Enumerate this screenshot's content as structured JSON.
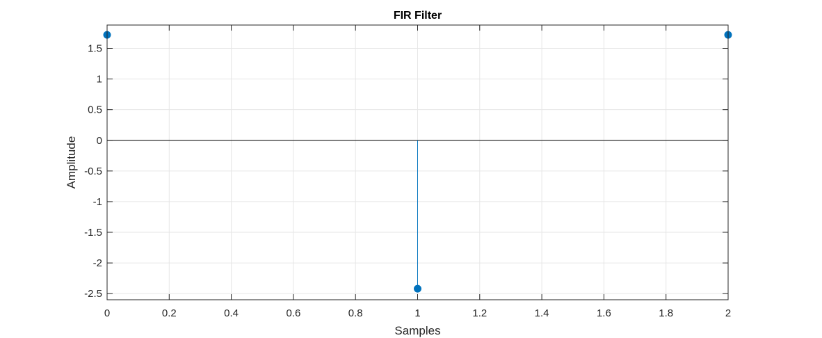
{
  "chart_data": {
    "type": "stem",
    "title": "FIR Filter",
    "xlabel": "Samples",
    "ylabel": "Amplitude",
    "xlim": [
      0,
      2
    ],
    "ylim": [
      -2.6,
      1.88
    ],
    "x_ticks": [
      0,
      0.2,
      0.4,
      0.6,
      0.8,
      1,
      1.2,
      1.4,
      1.6,
      1.8,
      2
    ],
    "x_tick_labels": [
      "0",
      "0.2",
      "0.4",
      "0.6",
      "0.8",
      "1",
      "1.2",
      "1.4",
      "1.6",
      "1.8",
      "2"
    ],
    "y_ticks": [
      1.5,
      1,
      0.5,
      0,
      -0.5,
      -1,
      -1.5,
      -2,
      -2.5
    ],
    "y_tick_labels": [
      "1.5",
      "1",
      "0.5",
      "0",
      "-0.5",
      "-1",
      "-1.5",
      "-2",
      "-2.5"
    ],
    "grid": true,
    "series": [
      {
        "x": [
          0,
          1,
          2
        ],
        "y": [
          1.72,
          -2.42,
          1.72
        ],
        "color": "#0072BD"
      }
    ],
    "grid_color": "#e6e6e6",
    "axis_color": "#262626",
    "baseline_color": "#000000"
  }
}
